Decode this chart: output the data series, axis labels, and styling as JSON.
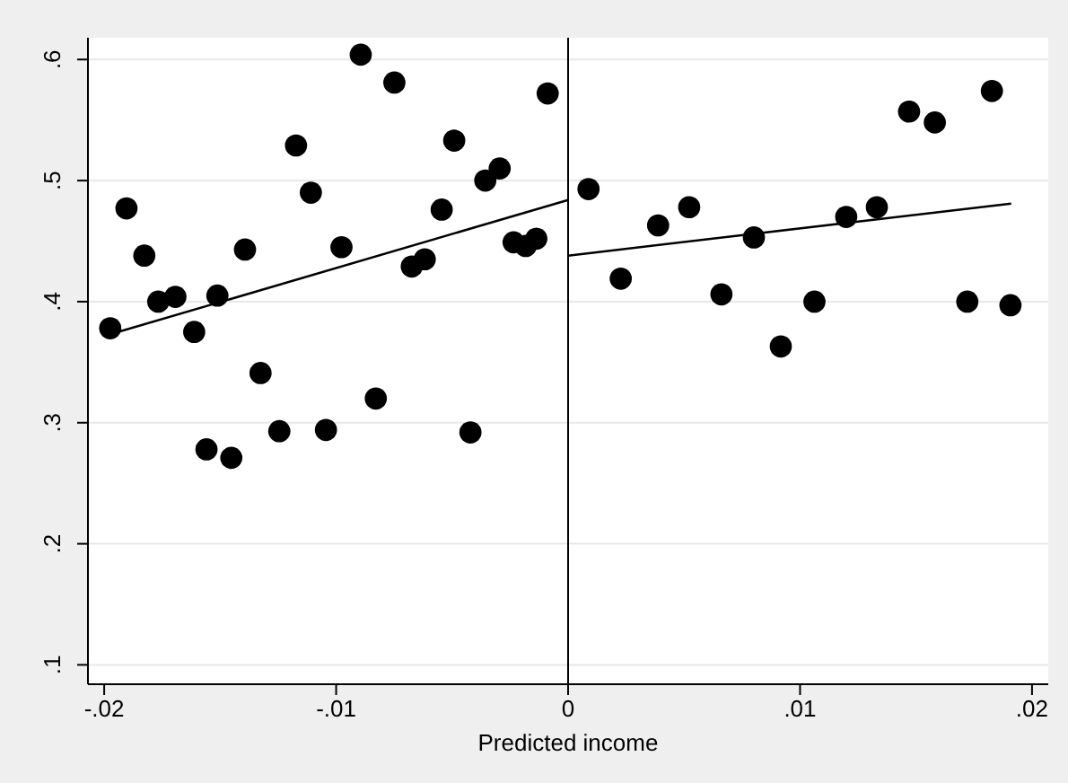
{
  "chart_data": {
    "type": "scatter",
    "xlabel": "Predicted income",
    "xlim": [
      -0.0207,
      0.0207
    ],
    "ylim": [
      0.084,
      0.618
    ],
    "xticks": [
      {
        "value": -0.02,
        "label": "-.02"
      },
      {
        "value": -0.01,
        "label": "-.01"
      },
      0,
      {
        "value": 0.01,
        "label": ".01"
      },
      {
        "value": 0.02,
        "label": ".02"
      }
    ],
    "yticks": [
      {
        "value": 0.1,
        "label": ".1"
      },
      {
        "value": 0.2,
        "label": ".2"
      },
      {
        "value": 0.3,
        "label": ".3"
      },
      {
        "value": 0.4,
        "label": ".4"
      },
      {
        "value": 0.5,
        "label": ".5"
      },
      {
        "value": 0.6,
        "label": ".6"
      }
    ],
    "grid": "y",
    "marker": "circle",
    "ref_lines": [
      {
        "axis": "x",
        "value": 0,
        "color": "#000000"
      }
    ],
    "series": [
      {
        "color": "#000000",
        "x": [
          -0.01974,
          -0.01904,
          -0.01827,
          -0.01767,
          -0.01693,
          -0.01612,
          -0.01559,
          -0.01512,
          -0.01452,
          -0.01393,
          -0.01326,
          -0.01245,
          -0.01173,
          -0.01109,
          -0.01044,
          -0.00977,
          -0.00894,
          -0.00829,
          -0.00749,
          -0.00674,
          -0.00618,
          -0.00545,
          -0.00491,
          -0.00421,
          -0.00357,
          -0.00295,
          -0.00235,
          -0.00183,
          -0.00137,
          -0.00088,
          0.00088,
          0.00227,
          0.00388,
          0.00522,
          0.00661,
          0.00801,
          0.00917,
          0.01062,
          0.01199,
          0.01331,
          0.0147,
          0.01581,
          0.01721,
          0.01827,
          0.01907
        ],
        "values": [
          0.378,
          0.477,
          0.438,
          0.4,
          0.404,
          0.375,
          0.278,
          0.405,
          0.271,
          0.443,
          0.341,
          0.293,
          0.529,
          0.49,
          0.294,
          0.445,
          0.604,
          0.32,
          0.581,
          0.429,
          0.435,
          0.476,
          0.533,
          0.292,
          0.5,
          0.51,
          0.449,
          0.446,
          0.452,
          0.572,
          0.493,
          0.419,
          0.463,
          0.478,
          0.406,
          0.453,
          0.363,
          0.4,
          0.47,
          0.478,
          0.557,
          0.548,
          0.4,
          0.574,
          0.397
        ]
      },
      {
        "type": "line",
        "color": "#000000",
        "marker": "none",
        "line_style": "solid",
        "x": [
          -0.01974,
          0
        ],
        "values": [
          0.373,
          0.484
        ]
      },
      {
        "type": "line",
        "color": "#000000",
        "marker": "none",
        "line_style": "solid",
        "x": [
          0,
          0.0191
        ],
        "values": [
          0.438,
          0.481
        ]
      }
    ]
  }
}
